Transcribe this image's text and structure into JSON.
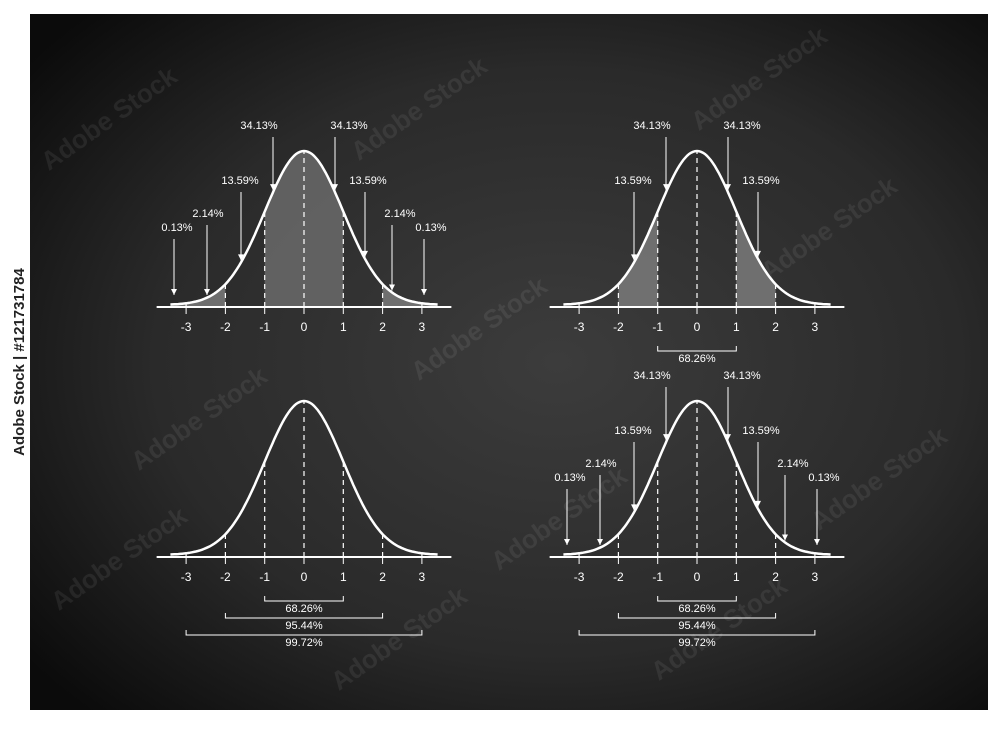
{
  "watermark": "Adobe Stock",
  "side_id": "Adobe Stock | #121731784",
  "panels": [
    {
      "xticks": [
        "-3",
        "-2",
        "-1",
        "0",
        "1",
        "2",
        "3"
      ],
      "labels": [
        "0.13%",
        "2.14%",
        "13.59%",
        "34.13%",
        "34.13%",
        "13.59%",
        "2.14%",
        "0.13%"
      ],
      "ranges": []
    },
    {
      "xticks": [
        "-3",
        "-2",
        "-1",
        "0",
        "1",
        "2",
        "3"
      ],
      "labels": [
        "13.59%",
        "34.13%",
        "34.13%",
        "13.59%"
      ],
      "ranges": [
        "68.26%"
      ]
    },
    {
      "xticks": [
        "-3",
        "-2",
        "-1",
        "0",
        "1",
        "2",
        "3"
      ],
      "labels": [],
      "ranges": [
        "68.26%",
        "95.44%",
        "99.72%"
      ]
    },
    {
      "xticks": [
        "-3",
        "-2",
        "-1",
        "0",
        "1",
        "2",
        "3"
      ],
      "labels": [
        "0.13%",
        "2.14%",
        "13.59%",
        "34.13%",
        "34.13%",
        "13.59%",
        "2.14%",
        "0.13%"
      ],
      "ranges": [
        "68.26%",
        "95.44%",
        "99.72%"
      ]
    }
  ]
}
